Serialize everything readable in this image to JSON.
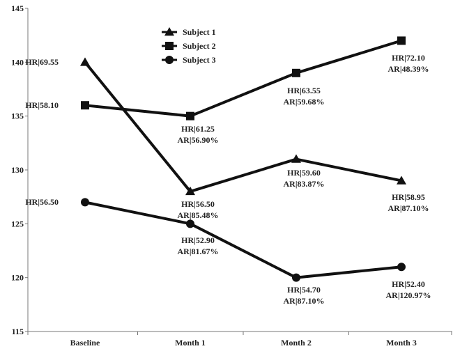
{
  "chart_data": {
    "type": "line",
    "title": "",
    "xlabel": "",
    "ylabel": "",
    "categories": [
      "Baseline",
      "Month 1",
      "Month 2",
      "Month 3"
    ],
    "ylim": [
      115,
      145
    ],
    "yticks": [
      115,
      120,
      125,
      130,
      135,
      140,
      145
    ],
    "grid": false,
    "legend": "top-center",
    "series": [
      {
        "name": "Subject 1",
        "marker": "triangle",
        "values": [
          140,
          128,
          131,
          129
        ],
        "labels": [
          [
            "HR|69.55"
          ],
          [
            "HR|56.50",
            "AR|85.48%"
          ],
          [
            "HR|59.60",
            "AR|83.87%"
          ],
          [
            "HR|58.95",
            "AR|87.10%"
          ]
        ]
      },
      {
        "name": "Subject 2",
        "marker": "square",
        "values": [
          136,
          135,
          139,
          142
        ],
        "labels": [
          [
            "HR|58.10"
          ],
          [
            "HR|61.25",
            "AR|56.90%"
          ],
          [
            "HR|63.55",
            "AR|59.68%"
          ],
          [
            "HR|72.10",
            "AR|48.39%"
          ]
        ]
      },
      {
        "name": "Subject 3",
        "marker": "circle",
        "values": [
          127,
          125,
          120,
          121
        ],
        "labels": [
          [
            "HR|56.50"
          ],
          [
            "HR|52.90",
            "AR|81.67%"
          ],
          [
            "HR|54.70",
            "AR|87.10%"
          ],
          [
            "HR|52.40",
            "AR|120.97%"
          ]
        ]
      }
    ],
    "colors": {
      "line": "#111111",
      "axis": "#777777"
    }
  }
}
